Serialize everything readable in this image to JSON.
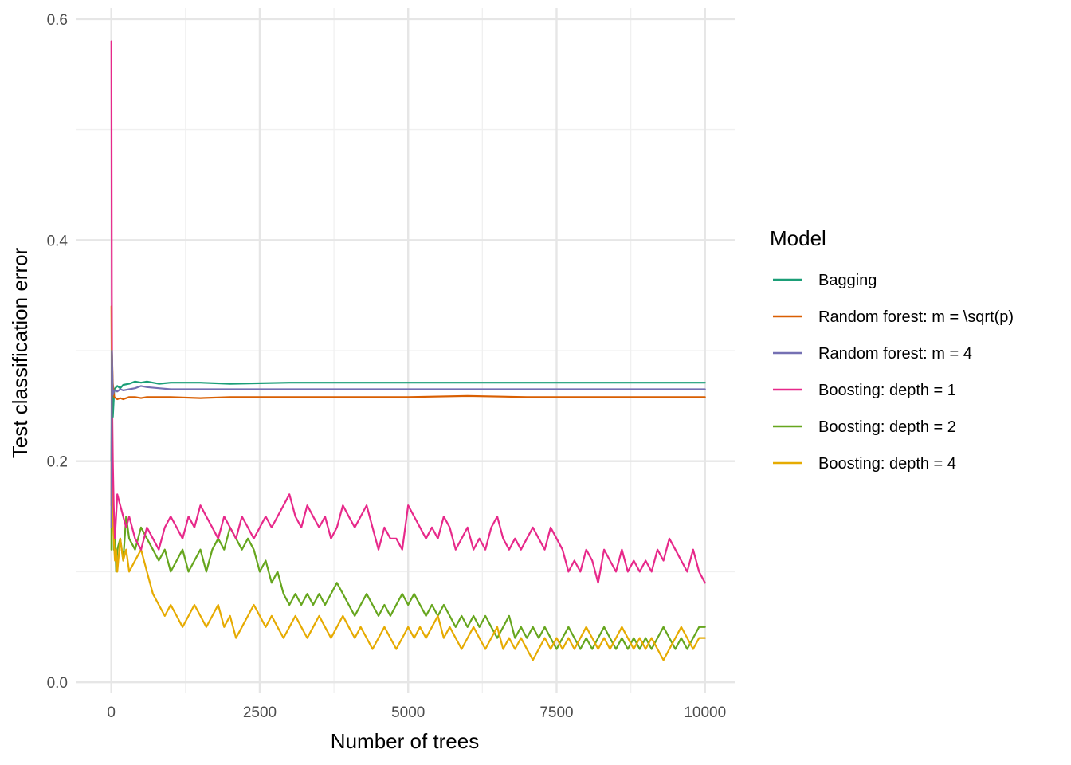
{
  "chart_data": {
    "type": "line",
    "title": "",
    "xlabel": "Number of trees",
    "ylabel": "Test classification error",
    "xlim": [
      -600,
      10500
    ],
    "ylim": [
      -0.01,
      0.61
    ],
    "x_ticks": [
      0,
      2500,
      5000,
      7500,
      10000
    ],
    "x_tick_labels": [
      "0",
      "2500",
      "5000",
      "7500",
      "10000"
    ],
    "y_ticks": [
      0.0,
      0.2,
      0.4,
      0.6
    ],
    "y_tick_labels": [
      "0.0",
      "0.2",
      "0.4",
      "0.6"
    ],
    "grid": true,
    "legend_position": "right",
    "legend_title": "Model",
    "series": [
      {
        "name": "Bagging",
        "color": "#1b9e77",
        "x": [
          1,
          10,
          25,
          50,
          100,
          150,
          200,
          300,
          400,
          500,
          600,
          800,
          1000,
          1500,
          2000,
          3000,
          4000,
          5000,
          6000,
          7000,
          8000,
          9000,
          10000
        ],
        "y": [
          0.2,
          0.3,
          0.24,
          0.265,
          0.268,
          0.266,
          0.269,
          0.27,
          0.272,
          0.271,
          0.272,
          0.27,
          0.271,
          0.271,
          0.27,
          0.271,
          0.271,
          0.271,
          0.271,
          0.271,
          0.271,
          0.271,
          0.271
        ]
      },
      {
        "name": "Random forest: m = \\sqrt(p)",
        "color": "#d95f02",
        "x": [
          1,
          10,
          25,
          50,
          100,
          150,
          200,
          300,
          400,
          500,
          600,
          800,
          1000,
          1500,
          2000,
          3000,
          4000,
          5000,
          6000,
          7000,
          8000,
          9000,
          10000
        ],
        "y": [
          0.16,
          0.3,
          0.27,
          0.258,
          0.256,
          0.257,
          0.256,
          0.258,
          0.258,
          0.257,
          0.258,
          0.258,
          0.258,
          0.257,
          0.258,
          0.258,
          0.258,
          0.258,
          0.259,
          0.258,
          0.258,
          0.258,
          0.258
        ]
      },
      {
        "name": "Random forest: m = 4",
        "color": "#7570b3",
        "x": [
          1,
          10,
          25,
          50,
          100,
          150,
          200,
          300,
          400,
          500,
          600,
          800,
          1000,
          1500,
          2000,
          3000,
          4000,
          5000,
          6000,
          7000,
          8000,
          9000,
          10000
        ],
        "y": [
          0.14,
          0.3,
          0.26,
          0.264,
          0.263,
          0.265,
          0.264,
          0.265,
          0.266,
          0.268,
          0.267,
          0.266,
          0.265,
          0.265,
          0.265,
          0.265,
          0.265,
          0.265,
          0.265,
          0.265,
          0.265,
          0.265,
          0.265
        ]
      },
      {
        "name": "Boosting: depth = 1",
        "color": "#e7298a",
        "x": [
          1,
          8,
          15,
          25,
          40,
          60,
          80,
          100,
          150,
          200,
          250,
          300,
          400,
          500,
          600,
          700,
          800,
          900,
          1000,
          1100,
          1200,
          1300,
          1400,
          1500,
          1600,
          1700,
          1800,
          1900,
          2000,
          2100,
          2200,
          2300,
          2400,
          2500,
          2600,
          2700,
          2800,
          2900,
          3000,
          3100,
          3200,
          3300,
          3400,
          3500,
          3600,
          3700,
          3800,
          3900,
          4000,
          4100,
          4200,
          4300,
          4400,
          4500,
          4600,
          4700,
          4800,
          4900,
          5000,
          5100,
          5200,
          5300,
          5400,
          5500,
          5600,
          5700,
          5800,
          5900,
          6000,
          6100,
          6200,
          6300,
          6400,
          6500,
          6600,
          6700,
          6800,
          6900,
          7000,
          7100,
          7200,
          7300,
          7400,
          7500,
          7600,
          7700,
          7800,
          7900,
          8000,
          8100,
          8200,
          8300,
          8400,
          8500,
          8600,
          8700,
          8800,
          8900,
          9000,
          9100,
          9200,
          9300,
          9400,
          9500,
          9600,
          9700,
          9800,
          9900,
          10000
        ],
        "y": [
          0.58,
          0.35,
          0.25,
          0.2,
          0.16,
          0.13,
          0.15,
          0.17,
          0.16,
          0.15,
          0.14,
          0.15,
          0.13,
          0.12,
          0.14,
          0.13,
          0.12,
          0.14,
          0.15,
          0.14,
          0.13,
          0.15,
          0.14,
          0.16,
          0.15,
          0.14,
          0.13,
          0.15,
          0.14,
          0.13,
          0.15,
          0.14,
          0.13,
          0.14,
          0.15,
          0.14,
          0.15,
          0.16,
          0.17,
          0.15,
          0.14,
          0.16,
          0.15,
          0.14,
          0.15,
          0.13,
          0.14,
          0.16,
          0.15,
          0.14,
          0.15,
          0.16,
          0.14,
          0.12,
          0.14,
          0.13,
          0.13,
          0.12,
          0.16,
          0.15,
          0.14,
          0.13,
          0.14,
          0.13,
          0.15,
          0.14,
          0.12,
          0.13,
          0.14,
          0.12,
          0.13,
          0.12,
          0.14,
          0.15,
          0.13,
          0.12,
          0.13,
          0.12,
          0.13,
          0.14,
          0.13,
          0.12,
          0.14,
          0.13,
          0.12,
          0.1,
          0.11,
          0.1,
          0.12,
          0.11,
          0.09,
          0.12,
          0.11,
          0.1,
          0.12,
          0.1,
          0.11,
          0.1,
          0.11,
          0.1,
          0.12,
          0.11,
          0.13,
          0.12,
          0.11,
          0.1,
          0.12,
          0.1,
          0.09
        ]
      },
      {
        "name": "Boosting: depth = 2",
        "color": "#66a61e",
        "x": [
          1,
          8,
          15,
          25,
          40,
          60,
          80,
          100,
          150,
          200,
          250,
          300,
          400,
          500,
          600,
          700,
          800,
          900,
          1000,
          1100,
          1200,
          1300,
          1400,
          1500,
          1600,
          1700,
          1800,
          1900,
          2000,
          2100,
          2200,
          2300,
          2400,
          2500,
          2600,
          2700,
          2800,
          2900,
          3000,
          3100,
          3200,
          3300,
          3400,
          3500,
          3600,
          3700,
          3800,
          3900,
          4000,
          4100,
          4200,
          4300,
          4400,
          4500,
          4600,
          4700,
          4800,
          4900,
          5000,
          5100,
          5200,
          5300,
          5400,
          5500,
          5600,
          5700,
          5800,
          5900,
          6000,
          6100,
          6200,
          6300,
          6400,
          6500,
          6600,
          6700,
          6800,
          6900,
          7000,
          7100,
          7200,
          7300,
          7400,
          7500,
          7600,
          7700,
          7800,
          7900,
          8000,
          8100,
          8200,
          8300,
          8400,
          8500,
          8600,
          8700,
          8800,
          8900,
          9000,
          9100,
          9200,
          9300,
          9400,
          9500,
          9600,
          9700,
          9800,
          9900,
          10000
        ],
        "y": [
          0.12,
          0.32,
          0.22,
          0.17,
          0.12,
          0.14,
          0.1,
          0.12,
          0.13,
          0.11,
          0.15,
          0.13,
          0.12,
          0.14,
          0.13,
          0.12,
          0.11,
          0.12,
          0.1,
          0.11,
          0.12,
          0.1,
          0.11,
          0.12,
          0.1,
          0.12,
          0.13,
          0.12,
          0.14,
          0.13,
          0.12,
          0.13,
          0.12,
          0.1,
          0.11,
          0.09,
          0.1,
          0.08,
          0.07,
          0.08,
          0.07,
          0.08,
          0.07,
          0.08,
          0.07,
          0.08,
          0.09,
          0.08,
          0.07,
          0.06,
          0.07,
          0.08,
          0.07,
          0.06,
          0.07,
          0.06,
          0.07,
          0.08,
          0.07,
          0.08,
          0.07,
          0.06,
          0.07,
          0.06,
          0.07,
          0.06,
          0.05,
          0.06,
          0.05,
          0.06,
          0.05,
          0.06,
          0.05,
          0.04,
          0.05,
          0.06,
          0.04,
          0.05,
          0.04,
          0.05,
          0.04,
          0.05,
          0.04,
          0.03,
          0.04,
          0.05,
          0.04,
          0.03,
          0.04,
          0.03,
          0.04,
          0.05,
          0.04,
          0.03,
          0.04,
          0.03,
          0.04,
          0.03,
          0.04,
          0.03,
          0.04,
          0.05,
          0.04,
          0.03,
          0.04,
          0.03,
          0.04,
          0.05,
          0.05
        ]
      },
      {
        "name": "Boosting: depth = 4",
        "color": "#e6ab02",
        "x": [
          1,
          8,
          15,
          25,
          40,
          60,
          80,
          100,
          150,
          200,
          250,
          300,
          400,
          500,
          600,
          700,
          800,
          900,
          1000,
          1100,
          1200,
          1300,
          1400,
          1500,
          1600,
          1700,
          1800,
          1900,
          2000,
          2100,
          2200,
          2300,
          2400,
          2500,
          2600,
          2700,
          2800,
          2900,
          3000,
          3100,
          3200,
          3300,
          3400,
          3500,
          3600,
          3700,
          3800,
          3900,
          4000,
          4100,
          4200,
          4300,
          4400,
          4500,
          4600,
          4700,
          4800,
          4900,
          5000,
          5100,
          5200,
          5300,
          5400,
          5500,
          5600,
          5700,
          5800,
          5900,
          6000,
          6100,
          6200,
          6300,
          6400,
          6500,
          6600,
          6700,
          6800,
          6900,
          7000,
          7100,
          7200,
          7300,
          7400,
          7500,
          7600,
          7700,
          7800,
          7900,
          8000,
          8100,
          8200,
          8300,
          8400,
          8500,
          8600,
          8700,
          8800,
          8900,
          9000,
          9100,
          9200,
          9300,
          9400,
          9500,
          9600,
          9700,
          9800,
          9900,
          10000
        ],
        "y": [
          0.34,
          0.28,
          0.2,
          0.15,
          0.13,
          0.11,
          0.12,
          0.1,
          0.13,
          0.11,
          0.12,
          0.1,
          0.11,
          0.12,
          0.1,
          0.08,
          0.07,
          0.06,
          0.07,
          0.06,
          0.05,
          0.06,
          0.07,
          0.06,
          0.05,
          0.06,
          0.07,
          0.05,
          0.06,
          0.04,
          0.05,
          0.06,
          0.07,
          0.06,
          0.05,
          0.06,
          0.05,
          0.04,
          0.05,
          0.06,
          0.05,
          0.04,
          0.05,
          0.06,
          0.05,
          0.04,
          0.05,
          0.06,
          0.05,
          0.04,
          0.05,
          0.04,
          0.03,
          0.04,
          0.05,
          0.04,
          0.03,
          0.04,
          0.05,
          0.04,
          0.05,
          0.04,
          0.05,
          0.06,
          0.04,
          0.05,
          0.04,
          0.03,
          0.04,
          0.05,
          0.04,
          0.03,
          0.04,
          0.05,
          0.03,
          0.04,
          0.03,
          0.04,
          0.03,
          0.02,
          0.03,
          0.04,
          0.03,
          0.04,
          0.03,
          0.04,
          0.03,
          0.04,
          0.05,
          0.04,
          0.03,
          0.04,
          0.03,
          0.04,
          0.05,
          0.04,
          0.03,
          0.04,
          0.03,
          0.04,
          0.03,
          0.02,
          0.03,
          0.04,
          0.05,
          0.04,
          0.03,
          0.04,
          0.04
        ]
      }
    ]
  }
}
